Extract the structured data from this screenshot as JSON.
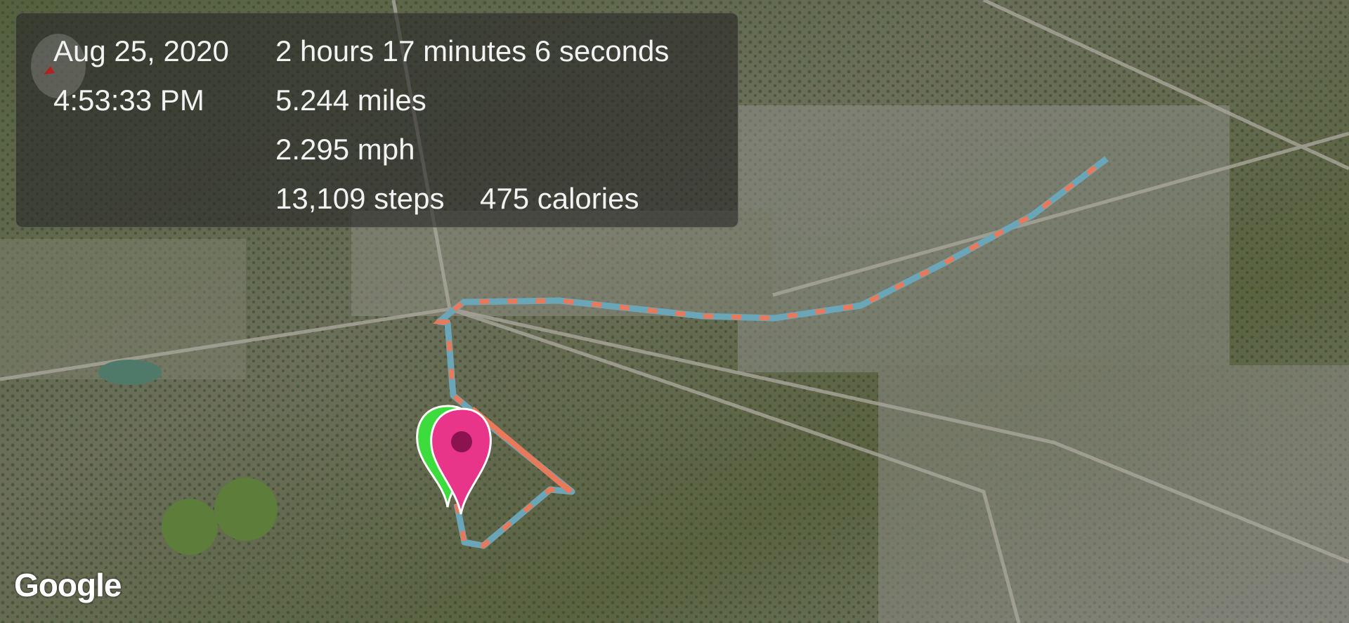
{
  "stats": {
    "date": "Aug 25, 2020",
    "time": "4:53:33 PM",
    "duration": "2 hours 17 minutes 6 seconds",
    "distance": "5.244 miles",
    "speed": "2.295 mph",
    "steps": "13,109 steps",
    "calories": "475 calories"
  },
  "map": {
    "logo": "Google",
    "compass_icon": "compass-icon",
    "start_marker_color": "#3ddc3d",
    "end_marker_color": "#e8358a",
    "route_colors": [
      "#e8795a",
      "#6aa6b8"
    ]
  }
}
